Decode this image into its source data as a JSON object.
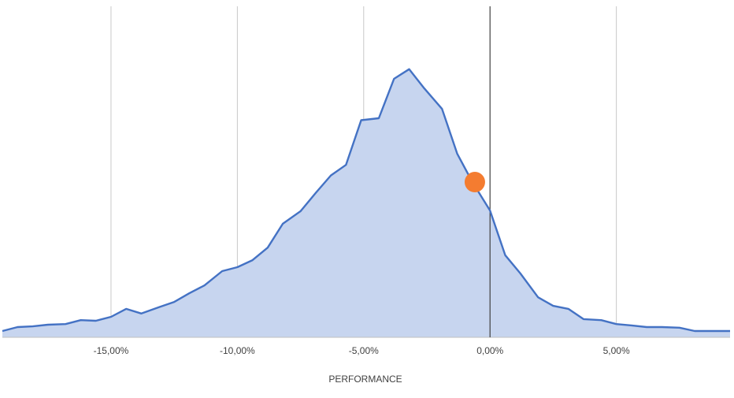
{
  "chart_data": {
    "type": "area",
    "title": "",
    "xlabel": "PERFORMANCE",
    "ylabel": "",
    "xlim": [
      -19.3,
      9.5
    ],
    "ylim": [
      0,
      100
    ],
    "grid": "vertical",
    "legend": "none",
    "x_ticks": [
      {
        "value": -15,
        "label": "-15,00%"
      },
      {
        "value": -10,
        "label": "-10,00%"
      },
      {
        "value": -5,
        "label": "-5,00%"
      },
      {
        "value": 0,
        "label": "0,00%"
      },
      {
        "value": 5,
        "label": "5,00%"
      }
    ],
    "series": [
      {
        "fill_color": "#c7d5ef",
        "line_color": "#4472c4",
        "x": [
          -19.3,
          -18.7,
          -18.1,
          -17.5,
          -16.8,
          -16.2,
          -15.6,
          -15.0,
          -14.4,
          -13.8,
          -13.1,
          -12.5,
          -11.9,
          -11.3,
          -10.6,
          -10.0,
          -9.4,
          -8.8,
          -8.2,
          -7.5,
          -6.9,
          -6.3,
          -5.7,
          -5.1,
          -4.4,
          -3.8,
          -3.2,
          -2.6,
          -1.9,
          -1.3,
          -0.7,
          0.0,
          0.6,
          1.2,
          1.9,
          2.5,
          3.1,
          3.7,
          4.4,
          5.0,
          5.6,
          6.2,
          6.8,
          7.5,
          8.1,
          8.7,
          9.5
        ],
        "y": [
          1.9,
          3.1,
          3.3,
          3.8,
          4.0,
          5.2,
          5.0,
          6.2,
          8.6,
          7.2,
          9.1,
          10.7,
          13.3,
          15.7,
          20.0,
          21.2,
          23.3,
          27.1,
          34.3,
          38.1,
          43.6,
          48.9,
          52.1,
          65.6,
          66.2,
          78.1,
          81.0,
          75.2,
          69.0,
          55.5,
          46.9,
          38.3,
          24.8,
          19.3,
          12.1,
          9.5,
          8.6,
          5.5,
          5.2,
          4.0,
          3.6,
          3.1,
          3.1,
          2.9,
          1.9,
          1.9,
          1.9
        ]
      }
    ],
    "marker": {
      "x": -0.6,
      "y": 46.9,
      "color": "#f47c30"
    },
    "zero_line_color": "#404040",
    "grid_color": "#c8c8c8",
    "baseline_color": "#bfbfbf"
  }
}
